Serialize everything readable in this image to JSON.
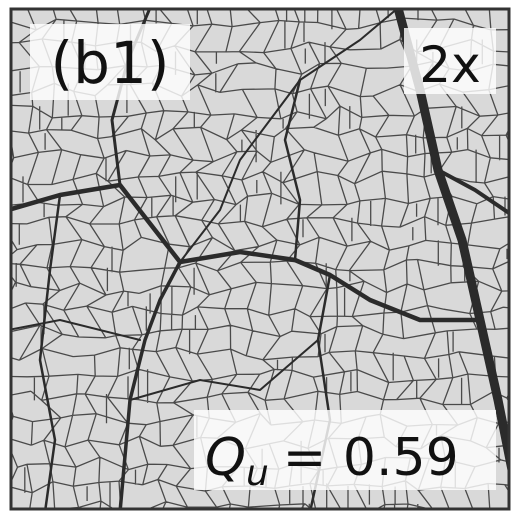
{
  "panel_label": "(b1)",
  "magnification": "2x",
  "metric": {
    "symbol": "Q",
    "subscript": "u",
    "value_text": "= 0.59"
  }
}
